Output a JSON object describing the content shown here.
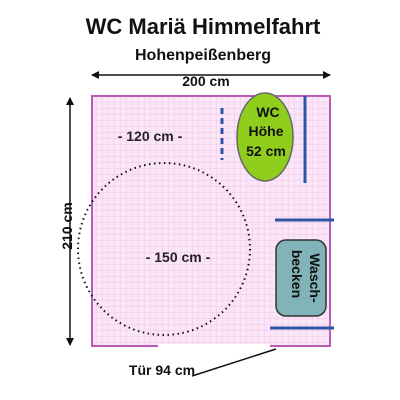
{
  "title": "WC Mariä Himmelfahrt",
  "subtitle": "Hohenpeißenberg",
  "dimensions": {
    "width_label": "200 cm",
    "depth_label": "210 cm",
    "side_space_label": "- 120 cm -",
    "turning_circle_label": "- 150 cm -",
    "door_label": "Tür 94 cm"
  },
  "wc": {
    "line1": "WC",
    "line2": "Höhe",
    "line3": "52 cm"
  },
  "sink": {
    "line1": "Wasch-",
    "line2": "becken"
  },
  "colors": {
    "floor": "#fbe6f8",
    "grid": "#e7b6e5",
    "wall": "#b85cb8",
    "wc": "#8fce1c",
    "sink": "#82b3b8",
    "grab_bar": "#2c55a6",
    "text": "#111111"
  }
}
